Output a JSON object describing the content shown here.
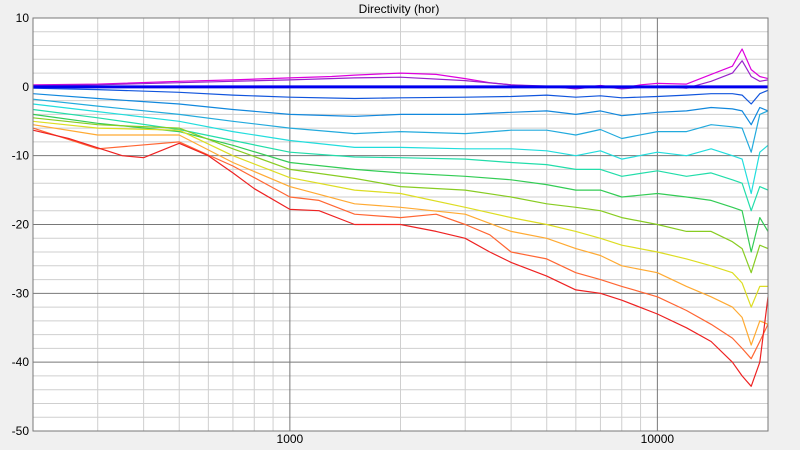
{
  "chart_data": {
    "type": "line",
    "title": "Directivity (hor)",
    "xlabel": "",
    "ylabel": "",
    "x_scale": "log",
    "xlim": [
      200,
      20000
    ],
    "ylim": [
      -50,
      10
    ],
    "x_tick_labels": [
      {
        "value": 1000,
        "label": "1000"
      },
      {
        "value": 10000,
        "label": "10000"
      }
    ],
    "y_ticks": [
      10,
      0,
      -10,
      -20,
      -30,
      -40,
      -50
    ],
    "grid": true,
    "legend": "none",
    "reference_line": {
      "y": 0,
      "color": "#0000ee"
    },
    "series": [
      {
        "color": "#dd00dd",
        "x": [
          200,
          300,
          500,
          700,
          1000,
          1300,
          1500,
          2000,
          2500,
          3000,
          3500,
          4000,
          5000,
          6000,
          7000,
          8000,
          9000,
          10000,
          12000,
          14000,
          16000,
          17000,
          18000,
          19000,
          20000
        ],
        "values": [
          0.3,
          0.4,
          0.8,
          1.0,
          1.3,
          1.5,
          1.7,
          2.0,
          1.8,
          1.2,
          0.6,
          0.3,
          0.0,
          -0.2,
          0.2,
          -0.2,
          0.3,
          0.5,
          0.4,
          1.8,
          3.0,
          5.5,
          2.5,
          1.5,
          1.2
        ]
      },
      {
        "color": "#9922cc",
        "x": [
          200,
          300,
          500,
          700,
          1000,
          1500,
          2000,
          3000,
          4000,
          5000,
          6000,
          7000,
          8000,
          10000,
          12000,
          14000,
          16000,
          17000,
          18000,
          19000,
          20000
        ],
        "values": [
          0.2,
          0.3,
          0.6,
          0.8,
          1.0,
          1.3,
          1.4,
          0.9,
          0.3,
          0.1,
          -0.3,
          0.1,
          -0.3,
          0.1,
          -0.2,
          0.8,
          2.0,
          3.8,
          1.5,
          0.8,
          1.0
        ]
      },
      {
        "color": "#1155dd",
        "x": [
          200,
          300,
          500,
          700,
          1000,
          1500,
          2000,
          3000,
          4000,
          5000,
          6000,
          7000,
          8000,
          10000,
          12000,
          14000,
          16000,
          17000,
          18000,
          19000,
          20000
        ],
        "values": [
          -0.2,
          -0.4,
          -0.8,
          -1.2,
          -1.5,
          -1.7,
          -1.6,
          -1.5,
          -1.4,
          -1.2,
          -1.5,
          -1.3,
          -1.6,
          -1.4,
          -1.2,
          -1.0,
          -1.0,
          -1.2,
          -2.5,
          -1.0,
          -0.5
        ]
      },
      {
        "color": "#1188dd",
        "x": [
          200,
          300,
          500,
          700,
          1000,
          1500,
          2000,
          3000,
          4000,
          5000,
          6000,
          7000,
          8000,
          10000,
          12000,
          14000,
          16000,
          17000,
          18000,
          19000,
          20000
        ],
        "values": [
          -1.0,
          -1.7,
          -2.5,
          -3.3,
          -4.0,
          -4.3,
          -4.0,
          -4.0,
          -3.7,
          -3.5,
          -4.0,
          -3.5,
          -4.2,
          -3.7,
          -3.5,
          -3.0,
          -3.2,
          -3.5,
          -5.5,
          -3.0,
          -3.5
        ]
      },
      {
        "color": "#22aadd",
        "x": [
          200,
          300,
          500,
          700,
          1000,
          1500,
          2000,
          3000,
          4000,
          5000,
          6000,
          7000,
          8000,
          10000,
          12000,
          14000,
          16000,
          17000,
          18000,
          19000,
          20000
        ],
        "values": [
          -1.8,
          -2.8,
          -4.0,
          -5.0,
          -6.0,
          -6.8,
          -6.5,
          -6.8,
          -6.3,
          -6.3,
          -7.0,
          -6.2,
          -7.5,
          -6.5,
          -6.5,
          -5.5,
          -5.8,
          -6.0,
          -9.5,
          -4.0,
          -3.5
        ]
      },
      {
        "color": "#22dddd",
        "x": [
          200,
          300,
          500,
          700,
          1000,
          1500,
          2000,
          3000,
          4000,
          5000,
          6000,
          7000,
          8000,
          10000,
          12000,
          14000,
          16000,
          17000,
          18000,
          19000,
          20000
        ],
        "values": [
          -2.5,
          -3.6,
          -5.0,
          -6.5,
          -7.8,
          -8.8,
          -8.8,
          -9.0,
          -9.0,
          -9.3,
          -10.0,
          -9.3,
          -10.5,
          -9.5,
          -10.0,
          -9.0,
          -10.0,
          -10.5,
          -15.5,
          -9.5,
          -8.5
        ]
      },
      {
        "color": "#22ddaa",
        "x": [
          200,
          300,
          500,
          700,
          1000,
          1500,
          2000,
          3000,
          4000,
          5000,
          6000,
          7000,
          8000,
          10000,
          12000,
          14000,
          16000,
          17000,
          18000,
          19000,
          20000
        ],
        "values": [
          -3.3,
          -4.5,
          -6.2,
          -7.8,
          -9.5,
          -10.2,
          -10.3,
          -10.5,
          -11.0,
          -11.3,
          -12.0,
          -12.0,
          -13.0,
          -12.2,
          -13.0,
          -12.5,
          -13.5,
          -14.0,
          -18.0,
          -14.5,
          -15.0
        ]
      },
      {
        "color": "#33cc55",
        "x": [
          200,
          300,
          500,
          700,
          1000,
          1500,
          2000,
          3000,
          4000,
          5000,
          6000,
          7000,
          8000,
          10000,
          12000,
          14000,
          16000,
          17000,
          18000,
          19000,
          20000
        ],
        "values": [
          -4.0,
          -5.3,
          -6.5,
          -8.5,
          -11.0,
          -12.0,
          -12.5,
          -13.0,
          -13.5,
          -14.2,
          -15.0,
          -15.0,
          -16.0,
          -15.5,
          -16.0,
          -16.5,
          -17.5,
          -18.0,
          -24.0,
          -19.0,
          -21.0
        ]
      },
      {
        "color": "#88cc22",
        "x": [
          200,
          300,
          500,
          700,
          1000,
          1500,
          2000,
          3000,
          4000,
          5000,
          6000,
          7000,
          8000,
          10000,
          12000,
          14000,
          16000,
          17000,
          18000,
          19000,
          20000
        ],
        "values": [
          -4.5,
          -5.5,
          -6.0,
          -9.0,
          -12.0,
          -13.3,
          -14.5,
          -15.0,
          -16.0,
          -17.0,
          -17.5,
          -18.0,
          -19.0,
          -20.0,
          -21.0,
          -21.0,
          -22.5,
          -23.5,
          -27.0,
          -23.0,
          -23.5
        ]
      },
      {
        "color": "#dddd22",
        "x": [
          200,
          300,
          500,
          700,
          1000,
          1500,
          2000,
          3000,
          4000,
          5000,
          6000,
          7000,
          8000,
          10000,
          12000,
          14000,
          16000,
          17000,
          18000,
          19000,
          20000
        ],
        "values": [
          -5.0,
          -6.0,
          -6.3,
          -10.0,
          -13.2,
          -15.0,
          -15.5,
          -17.5,
          -19.0,
          -20.0,
          -21.0,
          -22.0,
          -23.0,
          -24.0,
          -25.0,
          -26.0,
          -27.0,
          -28.5,
          -32.0,
          -29.0,
          -29.0
        ]
      },
      {
        "color": "#ffaa33",
        "x": [
          200,
          300,
          500,
          700,
          1000,
          1500,
          2000,
          3000,
          4000,
          5000,
          6000,
          7000,
          8000,
          10000,
          12000,
          14000,
          16000,
          17000,
          18000,
          19000,
          20000
        ],
        "values": [
          -5.5,
          -7.0,
          -7.0,
          -11.0,
          -14.5,
          -17.0,
          -17.5,
          -18.5,
          -21.0,
          -22.0,
          -23.5,
          -24.5,
          -26.0,
          -27.0,
          -29.0,
          -30.5,
          -32.0,
          -33.5,
          -37.5,
          -34.0,
          -34.5
        ]
      },
      {
        "color": "#ff6633",
        "x": [
          200,
          300,
          500,
          700,
          1000,
          1200,
          1500,
          2000,
          2500,
          3000,
          3500,
          4000,
          5000,
          6000,
          7000,
          8000,
          10000,
          12000,
          14000,
          16000,
          17000,
          18000,
          19000,
          20000
        ],
        "values": [
          -6.0,
          -9.0,
          -8.0,
          -11.5,
          -16.0,
          -16.5,
          -18.5,
          -19.0,
          -18.5,
          -20.0,
          -21.5,
          -24.0,
          -25.0,
          -27.0,
          -28.0,
          -29.0,
          -30.5,
          -32.5,
          -34.5,
          -36.5,
          -38.0,
          -39.5,
          -37.0,
          -34.5
        ]
      },
      {
        "color": "#ee2222",
        "x": [
          200,
          250,
          350,
          400,
          500,
          600,
          700,
          800,
          1000,
          1200,
          1500,
          2000,
          2500,
          3000,
          3500,
          4000,
          5000,
          6000,
          7000,
          8000,
          10000,
          12000,
          14000,
          16000,
          17000,
          18000,
          19000,
          20000
        ],
        "values": [
          -6.3,
          -7.5,
          -10.0,
          -10.3,
          -8.2,
          -10.0,
          -12.5,
          -14.8,
          -17.8,
          -18.0,
          -20.0,
          -20.0,
          -21.0,
          -22.0,
          -24.0,
          -25.5,
          -27.5,
          -29.5,
          -30.0,
          -31.0,
          -33.0,
          -35.0,
          -37.0,
          -40.0,
          -42.0,
          -43.5,
          -40.0,
          -30.5
        ]
      }
    ]
  },
  "colors": {
    "background": "#f0f0f0",
    "plot_background": "#ffffff",
    "major_grid": "#787878",
    "minor_grid": "#cfcfcf"
  }
}
